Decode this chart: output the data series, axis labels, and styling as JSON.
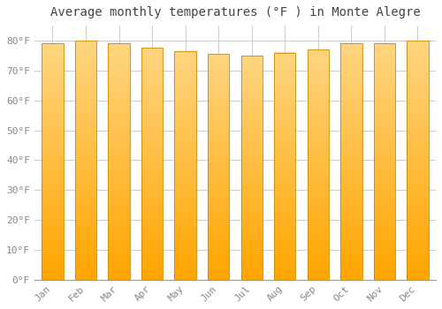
{
  "months": [
    "Jan",
    "Feb",
    "Mar",
    "Apr",
    "May",
    "Jun",
    "Jul",
    "Aug",
    "Sep",
    "Oct",
    "Nov",
    "Dec"
  ],
  "values": [
    79,
    80,
    79,
    77.5,
    76.5,
    75.5,
    75,
    76,
    77,
    79,
    79,
    80
  ],
  "title": "Average monthly temperatures (°F ) in Monte Alegre",
  "ylim": [
    0,
    85
  ],
  "ytick_values": [
    0,
    10,
    20,
    30,
    40,
    50,
    60,
    70,
    80
  ],
  "bar_color_bottom": "#FFA500",
  "bar_color_top": "#FFD580",
  "bar_edge_color": "#CC8800",
  "background_color": "#FFFFFF",
  "grid_color": "#CCCCCC",
  "title_fontsize": 10,
  "tick_fontsize": 8,
  "tick_color": "#888888",
  "title_color": "#444444",
  "bar_width": 0.65
}
